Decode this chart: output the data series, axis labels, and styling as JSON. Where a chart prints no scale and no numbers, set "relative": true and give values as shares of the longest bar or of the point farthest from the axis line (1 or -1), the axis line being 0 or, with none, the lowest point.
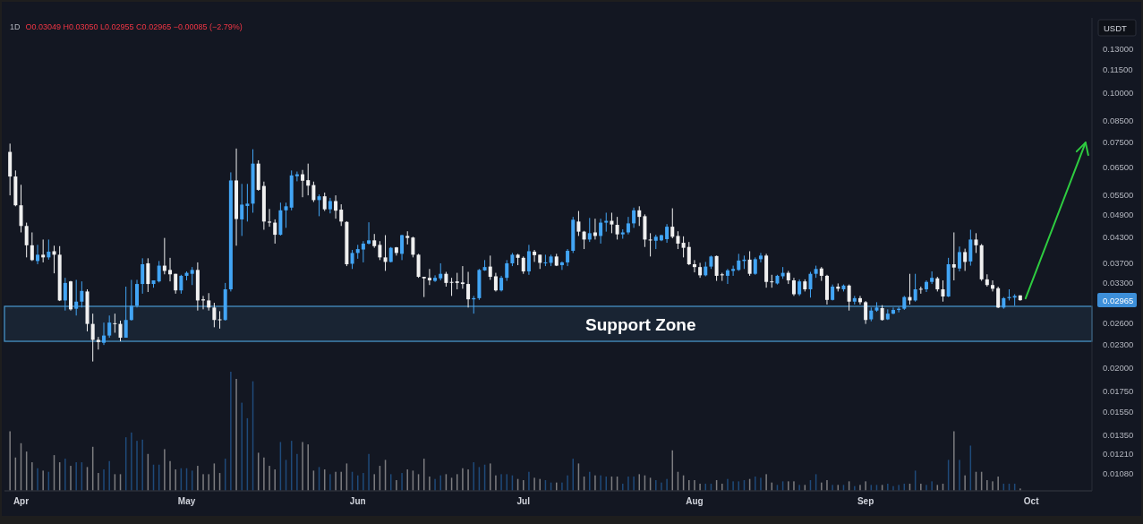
{
  "chart_data": [
    {
      "type": "candlestick",
      "title": "1D",
      "subtitle": "O0.03049 H0.03050 L0.02955 C0.02965 −0.00085 (−2.79%)",
      "ylabel": "USDT",
      "log": "y",
      "x": [
        "--03-30",
        "--03-31",
        "--04-01",
        "--04-02",
        "--04-03",
        "--04-04",
        "--04-05",
        "--04-06",
        "--04-07",
        "--04-08",
        "--04-09",
        "--04-10",
        "--04-11",
        "--04-12",
        "--04-13",
        "--04-14",
        "--04-15",
        "--04-16",
        "--04-17",
        "--04-18",
        "--04-19",
        "--04-20",
        "--04-21",
        "--04-22",
        "--04-23",
        "--04-24",
        "--04-25",
        "--04-26",
        "--04-27",
        "--04-28",
        "--04-29",
        "--04-30",
        "--05-01",
        "--05-02",
        "--05-03",
        "--05-04",
        "--05-05",
        "--05-06",
        "--05-07",
        "--05-08",
        "--05-09",
        "--05-10",
        "--05-11",
        "--05-12",
        "--05-13",
        "--05-14",
        "--05-15",
        "--05-16",
        "--05-17",
        "--05-18",
        "--05-19",
        "--05-20",
        "--05-21",
        "--05-22",
        "--05-23",
        "--05-24",
        "--05-25",
        "--05-26",
        "--05-27",
        "--05-28",
        "--05-29",
        "--05-30",
        "--05-31",
        "--06-01",
        "--06-02",
        "--06-03",
        "--06-04",
        "--06-05",
        "--06-06",
        "--06-07",
        "--06-08",
        "--06-09",
        "--06-10",
        "--06-11",
        "--06-12",
        "--06-13",
        "--06-14",
        "--06-15",
        "--06-16",
        "--06-17",
        "--06-18",
        "--06-19",
        "--06-20",
        "--06-21",
        "--06-22",
        "--06-23",
        "--06-24",
        "--06-25",
        "--06-26",
        "--06-27",
        "--06-28",
        "--06-29",
        "--06-30",
        "--07-01",
        "--07-02",
        "--07-03",
        "--07-04",
        "--07-05",
        "--07-06",
        "--07-07",
        "--07-08",
        "--07-09",
        "--07-10",
        "--07-11",
        "--07-12",
        "--07-13",
        "--07-14",
        "--07-15",
        "--07-16",
        "--07-17",
        "--07-18",
        "--07-19",
        "--07-20",
        "--07-21",
        "--07-22",
        "--07-23",
        "--07-24",
        "--07-25",
        "--07-26",
        "--07-27",
        "--07-28",
        "--07-29",
        "--07-30",
        "--07-31",
        "--08-01",
        "--08-02",
        "--08-03",
        "--08-04",
        "--08-05",
        "--08-06",
        "--08-07",
        "--08-08",
        "--08-09",
        "--08-10",
        "--08-11",
        "--08-12",
        "--08-13",
        "--08-14",
        "--08-15",
        "--08-16",
        "--08-17",
        "--08-18",
        "--08-19",
        "--08-20",
        "--08-21",
        "--08-22",
        "--08-23",
        "--08-24",
        "--08-25",
        "--08-26",
        "--08-27",
        "--08-28",
        "--08-29",
        "--08-30",
        "--08-31",
        "--09-01",
        "--09-02",
        "--09-03",
        "--09-04",
        "--09-05",
        "--09-06",
        "--09-07",
        "--09-08",
        "--09-09",
        "--09-10",
        "--09-11",
        "--09-12",
        "--09-13",
        "--09-14",
        "--09-15",
        "--09-16",
        "--09-17",
        "--09-18",
        "--09-19",
        "--09-20",
        "--09-21",
        "--09-22",
        "--09-23",
        "--09-24",
        "--09-25",
        "--09-26",
        "--09-27",
        "--09-28",
        "--09-29"
      ],
      "ohlc": [
        [
          0.0707,
          0.0742,
          0.0548,
          0.0612
        ],
        [
          0.0612,
          0.0634,
          0.0514,
          0.0517
        ],
        [
          0.0517,
          0.0583,
          0.0441,
          0.0458
        ],
        [
          0.0458,
          0.0467,
          0.0381,
          0.0409
        ],
        [
          0.0409,
          0.0441,
          0.0373,
          0.0375
        ],
        [
          0.0373,
          0.041,
          0.0366,
          0.0387
        ],
        [
          0.0387,
          0.0423,
          0.037,
          0.0381
        ],
        [
          0.0381,
          0.0423,
          0.0376,
          0.0394
        ],
        [
          0.0395,
          0.0408,
          0.0347,
          0.0387
        ],
        [
          0.0387,
          0.0407,
          0.0295,
          0.0296
        ],
        [
          0.0296,
          0.0338,
          0.0279,
          0.0328
        ],
        [
          0.0331,
          0.0332,
          0.0279,
          0.0281
        ],
        [
          0.0282,
          0.0334,
          0.0271,
          0.0294
        ],
        [
          0.0294,
          0.0331,
          0.0284,
          0.0313
        ],
        [
          0.0312,
          0.0316,
          0.0247,
          0.0258
        ],
        [
          0.0258,
          0.0274,
          0.0207,
          0.0235
        ],
        [
          0.0235,
          0.0239,
          0.0222,
          0.0232
        ],
        [
          0.0231,
          0.026,
          0.0228,
          0.0241
        ],
        [
          0.0241,
          0.0271,
          0.0238,
          0.026
        ],
        [
          0.0259,
          0.0274,
          0.0245,
          0.0258
        ],
        [
          0.0258,
          0.0263,
          0.0233,
          0.0238
        ],
        [
          0.0238,
          0.0321,
          0.0238,
          0.0264
        ],
        [
          0.0264,
          0.0334,
          0.0263,
          0.0287
        ],
        [
          0.0287,
          0.0334,
          0.0284,
          0.0326
        ],
        [
          0.0326,
          0.0379,
          0.0308,
          0.0366
        ],
        [
          0.0368,
          0.0379,
          0.0311,
          0.0326
        ],
        [
          0.0326,
          0.0333,
          0.0319,
          0.0333
        ],
        [
          0.0331,
          0.0373,
          0.0329,
          0.0363
        ],
        [
          0.0363,
          0.0427,
          0.0345,
          0.0352
        ],
        [
          0.0354,
          0.038,
          0.0331,
          0.0345
        ],
        [
          0.0346,
          0.0346,
          0.0308,
          0.0314
        ],
        [
          0.0314,
          0.0344,
          0.0308,
          0.0342
        ],
        [
          0.0342,
          0.0351,
          0.0333,
          0.0348
        ],
        [
          0.0346,
          0.036,
          0.0324,
          0.0354
        ],
        [
          0.0354,
          0.037,
          0.0279,
          0.0296
        ],
        [
          0.0298,
          0.0304,
          0.0281,
          0.0296
        ],
        [
          0.0296,
          0.0309,
          0.0279,
          0.0284
        ],
        [
          0.0284,
          0.0292,
          0.0253,
          0.0264
        ],
        [
          0.0265,
          0.0278,
          0.0251,
          0.0264
        ],
        [
          0.0264,
          0.0328,
          0.0263,
          0.0316
        ],
        [
          0.0316,
          0.0627,
          0.0312,
          0.0598
        ],
        [
          0.0598,
          0.0721,
          0.0408,
          0.0477
        ],
        [
          0.0476,
          0.0586,
          0.0432,
          0.0519
        ],
        [
          0.0515,
          0.0586,
          0.047,
          0.0522
        ],
        [
          0.0522,
          0.0718,
          0.0495,
          0.066
        ],
        [
          0.066,
          0.0673,
          0.0563,
          0.0566
        ],
        [
          0.0579,
          0.0594,
          0.0448,
          0.047
        ],
        [
          0.047,
          0.0506,
          0.0456,
          0.0467
        ],
        [
          0.0467,
          0.0476,
          0.0413,
          0.0435
        ],
        [
          0.0435,
          0.0525,
          0.0433,
          0.0502
        ],
        [
          0.0502,
          0.0525,
          0.0453,
          0.0514
        ],
        [
          0.051,
          0.0634,
          0.0502,
          0.0616
        ],
        [
          0.0613,
          0.063,
          0.0595,
          0.062
        ],
        [
          0.062,
          0.0636,
          0.0542,
          0.0597
        ],
        [
          0.0599,
          0.066,
          0.0548,
          0.058
        ],
        [
          0.0582,
          0.0594,
          0.0527,
          0.0533
        ],
        [
          0.0533,
          0.0551,
          0.0485,
          0.0545
        ],
        [
          0.0545,
          0.0557,
          0.05,
          0.0505
        ],
        [
          0.0505,
          0.054,
          0.0493,
          0.053
        ],
        [
          0.053,
          0.0548,
          0.0478,
          0.0501
        ],
        [
          0.0504,
          0.052,
          0.0458,
          0.047
        ],
        [
          0.0469,
          0.0471,
          0.0362,
          0.0366
        ],
        [
          0.0367,
          0.0398,
          0.0356,
          0.0391
        ],
        [
          0.0391,
          0.041,
          0.0378,
          0.04
        ],
        [
          0.0399,
          0.0419,
          0.037,
          0.0413
        ],
        [
          0.0413,
          0.0468,
          0.0411,
          0.0421
        ],
        [
          0.0421,
          0.0437,
          0.0403,
          0.0407
        ],
        [
          0.041,
          0.0419,
          0.0375,
          0.0381
        ],
        [
          0.0381,
          0.0434,
          0.0352,
          0.0371
        ],
        [
          0.0371,
          0.0405,
          0.037,
          0.0403
        ],
        [
          0.0404,
          0.0405,
          0.0385,
          0.0391
        ],
        [
          0.0389,
          0.0435,
          0.0375,
          0.0434
        ],
        [
          0.0432,
          0.0444,
          0.0411,
          0.0427
        ],
        [
          0.0428,
          0.043,
          0.0381,
          0.0387
        ],
        [
          0.0387,
          0.0389,
          0.0338,
          0.034
        ],
        [
          0.034,
          0.034,
          0.0302,
          0.0337
        ],
        [
          0.0338,
          0.0356,
          0.0324,
          0.0333
        ],
        [
          0.0332,
          0.0343,
          0.033,
          0.0338
        ],
        [
          0.0337,
          0.0368,
          0.0333,
          0.0346
        ],
        [
          0.0346,
          0.035,
          0.0321,
          0.0328
        ],
        [
          0.033,
          0.0338,
          0.0304,
          0.0329
        ],
        [
          0.0331,
          0.0348,
          0.0316,
          0.0328
        ],
        [
          0.0329,
          0.0362,
          0.0317,
          0.0326
        ],
        [
          0.0326,
          0.035,
          0.0284,
          0.0298
        ],
        [
          0.0298,
          0.0304,
          0.0274,
          0.03
        ],
        [
          0.03,
          0.0356,
          0.0297,
          0.0354
        ],
        [
          0.0353,
          0.0375,
          0.0352,
          0.036
        ],
        [
          0.0361,
          0.0385,
          0.0334,
          0.034
        ],
        [
          0.0341,
          0.0348,
          0.0312,
          0.0314
        ],
        [
          0.0314,
          0.0342,
          0.0312,
          0.0338
        ],
        [
          0.0338,
          0.0375,
          0.0332,
          0.0368
        ],
        [
          0.0368,
          0.0391,
          0.0362,
          0.0387
        ],
        [
          0.0387,
          0.0389,
          0.0364,
          0.038
        ],
        [
          0.038,
          0.0383,
          0.0346,
          0.0351
        ],
        [
          0.0351,
          0.041,
          0.0344,
          0.0395
        ],
        [
          0.0394,
          0.0398,
          0.0371,
          0.0386
        ],
        [
          0.0387,
          0.0387,
          0.0356,
          0.0369
        ],
        [
          0.0368,
          0.0387,
          0.0362,
          0.037
        ],
        [
          0.0369,
          0.0387,
          0.0362,
          0.0383
        ],
        [
          0.0383,
          0.0389,
          0.0362,
          0.0363
        ],
        [
          0.0364,
          0.0372,
          0.0354,
          0.037
        ],
        [
          0.037,
          0.04,
          0.0362,
          0.0396
        ],
        [
          0.0396,
          0.0483,
          0.0391,
          0.0475
        ],
        [
          0.047,
          0.05,
          0.0432,
          0.0443
        ],
        [
          0.0443,
          0.0445,
          0.04,
          0.0423
        ],
        [
          0.0423,
          0.048,
          0.0417,
          0.0439
        ],
        [
          0.0441,
          0.0478,
          0.0423,
          0.0432
        ],
        [
          0.0432,
          0.0478,
          0.0413,
          0.0467
        ],
        [
          0.0467,
          0.0495,
          0.0443,
          0.0472
        ],
        [
          0.0472,
          0.0495,
          0.0439,
          0.0462
        ],
        [
          0.0461,
          0.0483,
          0.0423,
          0.0436
        ],
        [
          0.0436,
          0.0449,
          0.0425,
          0.0441
        ],
        [
          0.0441,
          0.0483,
          0.0436,
          0.0465
        ],
        [
          0.0465,
          0.051,
          0.0453,
          0.0502
        ],
        [
          0.0502,
          0.0514,
          0.0458,
          0.0483
        ],
        [
          0.0485,
          0.049,
          0.0405,
          0.0423
        ],
        [
          0.0423,
          0.0439,
          0.0383,
          0.0421
        ],
        [
          0.042,
          0.0435,
          0.04,
          0.043
        ],
        [
          0.0421,
          0.0435,
          0.0419,
          0.0434
        ],
        [
          0.0424,
          0.0463,
          0.0415,
          0.0456
        ],
        [
          0.0456,
          0.0508,
          0.0426,
          0.043
        ],
        [
          0.0432,
          0.0444,
          0.04,
          0.0413
        ],
        [
          0.0415,
          0.0431,
          0.0381,
          0.0403
        ],
        [
          0.0405,
          0.0417,
          0.0364,
          0.0366
        ],
        [
          0.0366,
          0.0375,
          0.0349,
          0.036
        ],
        [
          0.036,
          0.0369,
          0.0338,
          0.0343
        ],
        [
          0.0343,
          0.0371,
          0.0341,
          0.0361
        ],
        [
          0.0361,
          0.0385,
          0.0356,
          0.0383
        ],
        [
          0.0384,
          0.0385,
          0.0332,
          0.0342
        ],
        [
          0.0345,
          0.0348,
          0.0332,
          0.0343
        ],
        [
          0.0342,
          0.0356,
          0.0326,
          0.0353
        ],
        [
          0.0352,
          0.0363,
          0.0342,
          0.0356
        ],
        [
          0.0354,
          0.0389,
          0.0352,
          0.0374
        ],
        [
          0.0373,
          0.0385,
          0.0356,
          0.0376
        ],
        [
          0.0376,
          0.0395,
          0.0342,
          0.0346
        ],
        [
          0.0346,
          0.0381,
          0.0344,
          0.0377
        ],
        [
          0.0377,
          0.0391,
          0.037,
          0.0385
        ],
        [
          0.0385,
          0.0389,
          0.0319,
          0.033
        ],
        [
          0.0331,
          0.0344,
          0.0319,
          0.033
        ],
        [
          0.0327,
          0.0344,
          0.0325,
          0.0342
        ],
        [
          0.0341,
          0.036,
          0.0336,
          0.0348
        ],
        [
          0.0348,
          0.0352,
          0.0326,
          0.0333
        ],
        [
          0.0333,
          0.0338,
          0.0304,
          0.0307
        ],
        [
          0.0307,
          0.0335,
          0.0304,
          0.0331
        ],
        [
          0.0331,
          0.0335,
          0.0312,
          0.0316
        ],
        [
          0.0316,
          0.035,
          0.0301,
          0.0346
        ],
        [
          0.0346,
          0.0363,
          0.0338,
          0.0356
        ],
        [
          0.0357,
          0.036,
          0.0332,
          0.0342
        ],
        [
          0.0342,
          0.0344,
          0.0289,
          0.0297
        ],
        [
          0.0297,
          0.0325,
          0.0296,
          0.0321
        ],
        [
          0.0321,
          0.0327,
          0.0312,
          0.0317
        ],
        [
          0.0316,
          0.0325,
          0.0312,
          0.0323
        ],
        [
          0.0323,
          0.0325,
          0.0279,
          0.0294
        ],
        [
          0.0294,
          0.0304,
          0.0289,
          0.03
        ],
        [
          0.03,
          0.0304,
          0.0289,
          0.0293
        ],
        [
          0.0293,
          0.0295,
          0.0258,
          0.0264
        ],
        [
          0.0265,
          0.0284,
          0.0262,
          0.0279
        ],
        [
          0.0279,
          0.0293,
          0.0277,
          0.0284
        ],
        [
          0.0283,
          0.0288,
          0.0263,
          0.0264
        ],
        [
          0.0265,
          0.0281,
          0.0264,
          0.0274
        ],
        [
          0.0274,
          0.0284,
          0.0273,
          0.028
        ],
        [
          0.028,
          0.0285,
          0.0276,
          0.0282
        ],
        [
          0.0282,
          0.0304,
          0.028,
          0.0302
        ],
        [
          0.0302,
          0.0346,
          0.0289,
          0.0296
        ],
        [
          0.0296,
          0.0346,
          0.0294,
          0.0316
        ],
        [
          0.0317,
          0.0321,
          0.0308,
          0.0316
        ],
        [
          0.0316,
          0.0333,
          0.0311,
          0.033
        ],
        [
          0.033,
          0.0351,
          0.0326,
          0.0338
        ],
        [
          0.0337,
          0.034,
          0.0312,
          0.0316
        ],
        [
          0.0316,
          0.0333,
          0.0294,
          0.0303
        ],
        [
          0.0303,
          0.038,
          0.0302,
          0.0366
        ],
        [
          0.0366,
          0.0441,
          0.0333,
          0.0359
        ],
        [
          0.0357,
          0.0406,
          0.0351,
          0.0393
        ],
        [
          0.0393,
          0.0401,
          0.0352,
          0.0371
        ],
        [
          0.0372,
          0.0448,
          0.0363,
          0.0423
        ],
        [
          0.0423,
          0.0439,
          0.0391,
          0.0409
        ],
        [
          0.0409,
          0.0412,
          0.0332,
          0.0335
        ],
        [
          0.0335,
          0.0345,
          0.0321,
          0.0324
        ],
        [
          0.0324,
          0.0333,
          0.0312,
          0.0317
        ],
        [
          0.0318,
          0.0321,
          0.0283,
          0.0284
        ],
        [
          0.0284,
          0.0302,
          0.0282,
          0.03
        ],
        [
          0.03,
          0.0316,
          0.0296,
          0.0302
        ],
        [
          0.0301,
          0.0307,
          0.0287,
          0.0304
        ],
        [
          0.03049,
          0.0305,
          0.02955,
          0.02965
        ]
      ],
      "colors": [
        "#f0f0f0",
        "#f0f0f0",
        "#f0f0f0",
        "#f0f0f0",
        "#f0f0f0",
        "#42a5f5",
        "#f0f0f0",
        "#42a5f5",
        "#f0f0f0",
        "#f0f0f0",
        "#42a5f5",
        "#f0f0f0",
        "#42a5f5",
        "#42a5f5",
        "#f0f0f0",
        "#f0f0f0",
        "#f0f0f0",
        "#42a5f5",
        "#42a5f5",
        "#f0f0f0",
        "#f0f0f0",
        "#42a5f5",
        "#42a5f5",
        "#42a5f5",
        "#42a5f5",
        "#f0f0f0",
        "#42a5f5",
        "#42a5f5",
        "#f0f0f0",
        "#f0f0f0",
        "#f0f0f0",
        "#42a5f5",
        "#42a5f5",
        "#42a5f5",
        "#f0f0f0",
        "#f0f0f0",
        "#f0f0f0",
        "#f0f0f0",
        "#f0f0f0",
        "#42a5f5",
        "#42a5f5",
        "#f0f0f0",
        "#42a5f5",
        "#42a5f5",
        "#42a5f5",
        "#f0f0f0",
        "#f0f0f0",
        "#f0f0f0",
        "#f0f0f0",
        "#42a5f5",
        "#42a5f5",
        "#42a5f5",
        "#42a5f5",
        "#f0f0f0",
        "#f0f0f0",
        "#f0f0f0",
        "#42a5f5",
        "#f0f0f0",
        "#42a5f5",
        "#f0f0f0",
        "#f0f0f0",
        "#f0f0f0",
        "#42a5f5",
        "#42a5f5",
        "#42a5f5",
        "#42a5f5",
        "#f0f0f0",
        "#f0f0f0",
        "#f0f0f0",
        "#42a5f5",
        "#f0f0f0",
        "#42a5f5",
        "#f0f0f0",
        "#f0f0f0",
        "#f0f0f0",
        "#f0f0f0",
        "#f0f0f0",
        "#42a5f5",
        "#42a5f5",
        "#f0f0f0",
        "#f0f0f0",
        "#f0f0f0",
        "#f0f0f0",
        "#f0f0f0",
        "#42a5f5",
        "#42a5f5",
        "#42a5f5",
        "#f0f0f0",
        "#f0f0f0",
        "#42a5f5",
        "#42a5f5",
        "#42a5f5",
        "#f0f0f0",
        "#f0f0f0",
        "#42a5f5",
        "#f0f0f0",
        "#f0f0f0",
        "#42a5f5",
        "#42a5f5",
        "#f0f0f0",
        "#42a5f5",
        "#42a5f5",
        "#42a5f5",
        "#f0f0f0",
        "#f0f0f0",
        "#42a5f5",
        "#f0f0f0",
        "#42a5f5",
        "#42a5f5",
        "#f0f0f0",
        "#f0f0f0",
        "#42a5f5",
        "#42a5f5",
        "#42a5f5",
        "#f0f0f0",
        "#f0f0f0",
        "#f0f0f0",
        "#42a5f5",
        "#42a5f5",
        "#42a5f5",
        "#f0f0f0",
        "#f0f0f0",
        "#f0f0f0",
        "#f0f0f0",
        "#f0f0f0",
        "#f0f0f0",
        "#42a5f5",
        "#42a5f5",
        "#f0f0f0",
        "#f0f0f0",
        "#42a5f5",
        "#42a5f5",
        "#42a5f5",
        "#42a5f5",
        "#f0f0f0",
        "#42a5f5",
        "#42a5f5",
        "#f0f0f0",
        "#f0f0f0",
        "#42a5f5",
        "#42a5f5",
        "#f0f0f0",
        "#f0f0f0",
        "#42a5f5",
        "#f0f0f0",
        "#42a5f5",
        "#42a5f5",
        "#f0f0f0",
        "#f0f0f0",
        "#42a5f5",
        "#f0f0f0",
        "#42a5f5",
        "#f0f0f0",
        "#42a5f5",
        "#f0f0f0",
        "#f0f0f0",
        "#42a5f5",
        "#42a5f5",
        "#f0f0f0",
        "#42a5f5",
        "#42a5f5",
        "#42a5f5",
        "#42a5f5",
        "#f0f0f0",
        "#42a5f5",
        "#f0f0f0",
        "#42a5f5",
        "#42a5f5",
        "#f0f0f0",
        "#f0f0f0",
        "#42a5f5",
        "#f0f0f0",
        "#42a5f5",
        "#f0f0f0",
        "#42a5f5",
        "#f0f0f0",
        "#f0f0f0",
        "#f0f0f0",
        "#f0f0f0",
        "#f0f0f0",
        "#42a5f5",
        "#42a5f5",
        "#42a5f5",
        "#f0f0f0"
      ],
      "xlim": [
        "--03-29",
        "--10-12"
      ],
      "tick_labels": "y",
      "ylim": [
        0.0097,
        0.155
      ],
      "yticks": [
        {
          "value": 0.13,
          "label": "0.13000"
        },
        {
          "value": 0.115,
          "label": "0.11500"
        },
        {
          "value": 0.1,
          "label": "0.10000"
        },
        {
          "value": 0.085,
          "label": "0.08500"
        },
        {
          "value": 0.075,
          "label": "0.07500"
        },
        {
          "value": 0.065,
          "label": "0.06500"
        },
        {
          "value": 0.055,
          "label": "0.05500"
        },
        {
          "value": 0.049,
          "label": "0.04900"
        },
        {
          "value": 0.043,
          "label": "0.04300"
        },
        {
          "value": 0.037,
          "label": "0.03700"
        },
        {
          "value": 0.033,
          "label": "0.03300"
        },
        0.02965,
        {
          "value": 0.026,
          "label": "0.02600"
        },
        {
          "value": 0.023,
          "label": "0.02300"
        },
        {
          "value": 0.02,
          "label": "0.02000"
        },
        {
          "value": 0.0175,
          "label": "0.01750"
        },
        {
          "value": 0.0155,
          "label": "0.01550"
        },
        {
          "value": 0.0135,
          "label": "0.01350"
        },
        {
          "value": 0.0121,
          "label": "0.01210"
        },
        {
          "value": 0.0108,
          "label": "0.01080"
        }
      ],
      "bands": [
        {
          "axis": "y",
          "from": 0.0233,
          "to": 0.0286,
          "label": "Support Zone",
          "color": "#4a9bd1"
        }
      ]
    },
    {
      "type": "bar",
      "relative": true,
      "x": [
        "--03-30",
        "--03-31",
        "--04-01",
        "--04-02",
        "--04-03",
        "--04-04",
        "--04-05",
        "--04-06",
        "--04-07",
        "--04-08",
        "--04-09",
        "--04-10",
        "--04-11",
        "--04-12",
        "--04-13",
        "--04-14",
        "--04-15",
        "--04-16",
        "--04-17",
        "--04-18",
        "--04-19",
        "--04-20",
        "--04-21",
        "--04-22",
        "--04-23",
        "--04-24",
        "--04-25",
        "--04-26",
        "--04-27",
        "--04-28",
        "--04-29",
        "--04-30",
        "--05-01",
        "--05-02",
        "--05-03",
        "--05-04",
        "--05-05",
        "--05-06",
        "--05-07",
        "--05-08",
        "--05-09",
        "--05-10",
        "--05-11",
        "--05-12",
        "--05-13",
        "--05-14",
        "--05-15",
        "--05-16",
        "--05-17",
        "--05-18",
        "--05-19",
        "--05-20",
        "--05-21",
        "--05-22",
        "--05-23",
        "--05-24",
        "--05-25",
        "--05-26",
        "--05-27",
        "--05-28",
        "--05-29",
        "--05-30",
        "--05-31",
        "--06-01",
        "--06-02",
        "--06-03",
        "--06-04",
        "--06-05",
        "--06-06",
        "--06-07",
        "--06-08",
        "--06-09",
        "--06-10",
        "--06-11",
        "--06-12",
        "--06-13",
        "--06-14",
        "--06-15",
        "--06-16",
        "--06-17",
        "--06-18",
        "--06-19",
        "--06-20",
        "--06-21",
        "--06-22",
        "--06-23",
        "--06-24",
        "--06-25",
        "--06-26",
        "--06-27",
        "--06-28",
        "--06-29",
        "--06-30",
        "--07-01",
        "--07-02",
        "--07-03",
        "--07-04",
        "--07-05",
        "--07-06",
        "--07-07",
        "--07-08",
        "--07-09",
        "--07-10",
        "--07-11",
        "--07-12",
        "--07-13",
        "--07-14",
        "--07-15",
        "--07-16",
        "--07-17",
        "--07-18",
        "--07-19",
        "--07-20",
        "--07-21",
        "--07-22",
        "--07-23",
        "--07-24",
        "--07-25",
        "--07-26",
        "--07-27",
        "--07-28",
        "--07-29",
        "--07-30",
        "--07-31",
        "--08-01",
        "--08-02",
        "--08-03",
        "--08-04",
        "--08-05",
        "--08-06",
        "--08-07",
        "--08-08",
        "--08-09",
        "--08-10",
        "--08-11",
        "--08-12",
        "--08-13",
        "--08-14",
        "--08-15",
        "--08-16",
        "--08-17",
        "--08-18",
        "--08-19",
        "--08-20",
        "--08-21",
        "--08-22",
        "--08-23",
        "--08-24",
        "--08-25",
        "--08-26",
        "--08-27",
        "--08-28",
        "--08-29",
        "--08-30",
        "--08-31",
        "--09-01",
        "--09-02",
        "--09-03",
        "--09-04",
        "--09-05",
        "--09-06",
        "--09-07",
        "--09-08",
        "--09-09",
        "--09-10",
        "--09-11",
        "--09-12",
        "--09-13",
        "--09-14",
        "--09-15",
        "--09-16",
        "--09-17",
        "--09-18",
        "--09-19",
        "--09-20",
        "--09-21",
        "--09-22",
        "--09-23",
        "--09-24",
        "--09-25",
        "--09-26",
        "--09-27",
        "--09-28",
        "--09-29"
      ],
      "xlim": [
        "--03-29",
        "--10-12"
      ],
      "xticks": [
        {
          "value": "--04-01",
          "label": "Apr"
        },
        {
          "value": "--05-01",
          "label": "May"
        },
        {
          "value": "--06-01",
          "label": "Jun"
        },
        {
          "value": "--07-01",
          "label": "Jul"
        },
        {
          "value": "--08-01",
          "label": "Aug"
        },
        {
          "value": "--09-01",
          "label": "Sep"
        },
        {
          "value": "--10-01",
          "label": "Oct"
        }
      ],
      "values": [
        0.5,
        0.28,
        0.4,
        0.33,
        0.24,
        0.19,
        0.17,
        0.16,
        0.3,
        0.24,
        0.27,
        0.21,
        0.24,
        0.24,
        0.2,
        0.37,
        0.15,
        0.18,
        0.25,
        0.14,
        0.14,
        0.45,
        0.49,
        0.42,
        0.43,
        0.31,
        0.22,
        0.22,
        0.35,
        0.25,
        0.18,
        0.19,
        0.19,
        0.17,
        0.21,
        0.14,
        0.14,
        0.23,
        0.15,
        0.27,
        1,
        0.94,
        0.74,
        0.61,
        0.92,
        0.32,
        0.28,
        0.21,
        0.18,
        0.41,
        0.26,
        0.42,
        0.31,
        0.41,
        0.39,
        0.17,
        0.2,
        0.18,
        0.14,
        0.16,
        0.16,
        0.23,
        0.16,
        0.13,
        0.15,
        0.31,
        0.14,
        0.21,
        0.26,
        0.14,
        0.09,
        0.15,
        0.18,
        0.17,
        0.14,
        0.27,
        0.12,
        0.1,
        0.13,
        0.14,
        0.11,
        0.14,
        0.19,
        0.18,
        0.24,
        0.2,
        0.22,
        0.23,
        0.13,
        0.14,
        0.14,
        0.13,
        0.1,
        0.09,
        0.16,
        0.11,
        0.1,
        0.09,
        0.07,
        0.07,
        0.07,
        0.13,
        0.27,
        0.23,
        0.12,
        0.16,
        0.13,
        0.13,
        0.12,
        0.12,
        0.12,
        0.06,
        0.12,
        0.12,
        0.14,
        0.13,
        0.11,
        0.09,
        0.07,
        0.1,
        0.34,
        0.16,
        0.13,
        0.09,
        0.09,
        0.06,
        0.06,
        0.06,
        0.09,
        0.06,
        0.1,
        0.08,
        0.08,
        0.09,
        0.1,
        0.12,
        0.11,
        0.14,
        0.07,
        0.05,
        0.08,
        0.08,
        0.08,
        0.05,
        0.05,
        0.09,
        0.14,
        0.07,
        0.09,
        0.05,
        0.05,
        0.05,
        0.08,
        0.04,
        0.05,
        0.08,
        0.05,
        0.05,
        0.05,
        0.06,
        0.04,
        0.05,
        0.06,
        0.06,
        0.17,
        0.06,
        0.05,
        0.08,
        0.05,
        0.06,
        0.26,
        0.5,
        0.26,
        0.13,
        0.38,
        0.16,
        0.16,
        0.09,
        0.08,
        0.12,
        0.06,
        0.06,
        0.06,
        0.02
      ],
      "colors": [
        "#7d7d80",
        "#7d7d80",
        "#7d7d80",
        "#7d7d80",
        "#7d7d80",
        "#1f4a7a",
        "#7d7d80",
        "#1f4a7a",
        "#7d7d80",
        "#7d7d80",
        "#1f4a7a",
        "#7d7d80",
        "#1f4a7a",
        "#1f4a7a",
        "#7d7d80",
        "#7d7d80",
        "#7d7d80",
        "#1f4a7a",
        "#1f4a7a",
        "#7d7d80",
        "#7d7d80",
        "#1f4a7a",
        "#1f4a7a",
        "#1f4a7a",
        "#1f4a7a",
        "#7d7d80",
        "#1f4a7a",
        "#1f4a7a",
        "#7d7d80",
        "#7d7d80",
        "#7d7d80",
        "#1f4a7a",
        "#1f4a7a",
        "#1f4a7a",
        "#7d7d80",
        "#7d7d80",
        "#7d7d80",
        "#7d7d80",
        "#7d7d80",
        "#1f4a7a",
        "#1f4a7a",
        "#7d7d80",
        "#1f4a7a",
        "#1f4a7a",
        "#1f4a7a",
        "#7d7d80",
        "#7d7d80",
        "#7d7d80",
        "#7d7d80",
        "#1f4a7a",
        "#1f4a7a",
        "#1f4a7a",
        "#1f4a7a",
        "#7d7d80",
        "#7d7d80",
        "#7d7d80",
        "#1f4a7a",
        "#7d7d80",
        "#1f4a7a",
        "#7d7d80",
        "#7d7d80",
        "#7d7d80",
        "#1f4a7a",
        "#1f4a7a",
        "#1f4a7a",
        "#1f4a7a",
        "#7d7d80",
        "#7d7d80",
        "#7d7d80",
        "#1f4a7a",
        "#7d7d80",
        "#1f4a7a",
        "#7d7d80",
        "#7d7d80",
        "#7d7d80",
        "#7d7d80",
        "#7d7d80",
        "#1f4a7a",
        "#1f4a7a",
        "#7d7d80",
        "#7d7d80",
        "#7d7d80",
        "#7d7d80",
        "#7d7d80",
        "#1f4a7a",
        "#1f4a7a",
        "#1f4a7a",
        "#7d7d80",
        "#7d7d80",
        "#1f4a7a",
        "#1f4a7a",
        "#1f4a7a",
        "#7d7d80",
        "#7d7d80",
        "#1f4a7a",
        "#7d7d80",
        "#7d7d80",
        "#1f4a7a",
        "#1f4a7a",
        "#7d7d80",
        "#1f4a7a",
        "#1f4a7a",
        "#1f4a7a",
        "#7d7d80",
        "#7d7d80",
        "#1f4a7a",
        "#7d7d80",
        "#1f4a7a",
        "#1f4a7a",
        "#7d7d80",
        "#7d7d80",
        "#1f4a7a",
        "#1f4a7a",
        "#1f4a7a",
        "#7d7d80",
        "#7d7d80",
        "#7d7d80",
        "#1f4a7a",
        "#1f4a7a",
        "#1f4a7a",
        "#7d7d80",
        "#7d7d80",
        "#7d7d80",
        "#7d7d80",
        "#7d7d80",
        "#7d7d80",
        "#1f4a7a",
        "#1f4a7a",
        "#7d7d80",
        "#7d7d80",
        "#1f4a7a",
        "#1f4a7a",
        "#1f4a7a",
        "#1f4a7a",
        "#7d7d80",
        "#1f4a7a",
        "#1f4a7a",
        "#7d7d80",
        "#7d7d80",
        "#1f4a7a",
        "#1f4a7a",
        "#7d7d80",
        "#7d7d80",
        "#1f4a7a",
        "#7d7d80",
        "#1f4a7a",
        "#1f4a7a",
        "#7d7d80",
        "#7d7d80",
        "#1f4a7a",
        "#7d7d80",
        "#1f4a7a",
        "#7d7d80",
        "#1f4a7a",
        "#7d7d80",
        "#7d7d80",
        "#1f4a7a",
        "#1f4a7a",
        "#7d7d80",
        "#1f4a7a",
        "#1f4a7a",
        "#1f4a7a",
        "#1f4a7a",
        "#7d7d80",
        "#1f4a7a",
        "#7d7d80",
        "#1f4a7a",
        "#1f4a7a",
        "#7d7d80",
        "#7d7d80",
        "#1f4a7a",
        "#7d7d80",
        "#1f4a7a",
        "#7d7d80",
        "#1f4a7a",
        "#7d7d80",
        "#7d7d80",
        "#7d7d80",
        "#7d7d80",
        "#7d7d80",
        "#1f4a7a",
        "#1f4a7a",
        "#1f4a7a",
        "#7d7d80"
      ]
    }
  ]
}
